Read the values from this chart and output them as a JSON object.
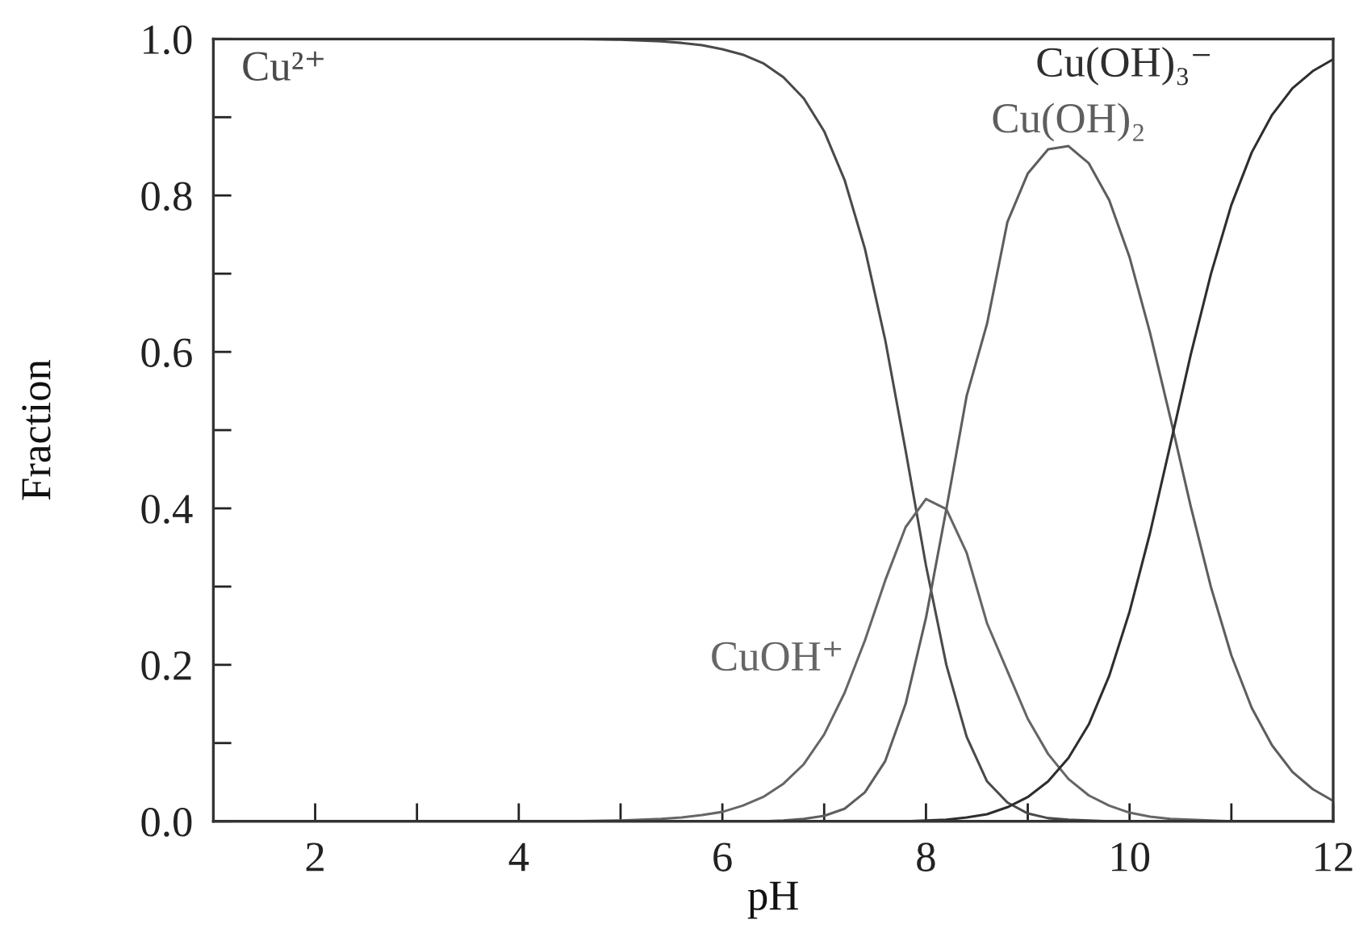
{
  "chart_data": {
    "type": "line",
    "xlabel": "pH",
    "ylabel": "Fraction",
    "x": [
      1,
      2,
      3,
      4,
      4.5,
      5,
      5.2,
      5.4,
      5.6,
      5.8,
      6,
      6.2,
      6.4,
      6.6,
      6.8,
      7,
      7.2,
      7.4,
      7.6,
      7.8,
      8,
      8.2,
      8.4,
      8.6,
      8.8,
      9,
      9.2,
      9.4,
      9.6,
      9.8,
      10,
      10.2,
      10.4,
      10.6,
      10.8,
      11,
      11.2,
      11.4,
      11.6,
      11.8,
      12
    ],
    "series": [
      {
        "name": "Cu²⁺",
        "color": "#4a4a4a",
        "values": [
          1,
          1,
          1,
          1,
          1,
          0.999,
          0.998,
          0.997,
          0.995,
          0.992,
          0.987,
          0.98,
          0.969,
          0.951,
          0.924,
          0.882,
          0.82,
          0.732,
          0.615,
          0.474,
          0.327,
          0.2,
          0.108,
          0.051,
          0.024,
          0.01,
          0.004,
          0.002,
          0.001,
          0,
          0,
          0,
          0,
          0,
          0,
          0,
          0,
          0,
          0,
          0,
          0
        ]
      },
      {
        "name": "CuOH⁺",
        "color": "#666666",
        "values": [
          0,
          0,
          0,
          0,
          0,
          0.001,
          0.002,
          0.003,
          0.005,
          0.008,
          0.012,
          0.02,
          0.031,
          0.048,
          0.073,
          0.111,
          0.164,
          0.231,
          0.308,
          0.376,
          0.412,
          0.399,
          0.343,
          0.253,
          0.192,
          0.131,
          0.086,
          0.054,
          0.033,
          0.02,
          0.011,
          0.006,
          0.003,
          0.002,
          0.001,
          0,
          0,
          0,
          0,
          0,
          0
        ]
      },
      {
        "name": "Cu(OH)₂",
        "color": "#5e5e5e",
        "values": [
          0,
          0,
          0,
          0,
          0,
          0,
          0,
          0,
          0,
          0,
          0,
          0,
          0,
          0.001,
          0.003,
          0.007,
          0.016,
          0.037,
          0.077,
          0.15,
          0.26,
          0.399,
          0.544,
          0.636,
          0.766,
          0.828,
          0.859,
          0.863,
          0.841,
          0.794,
          0.721,
          0.625,
          0.516,
          0.403,
          0.299,
          0.212,
          0.145,
          0.097,
          0.063,
          0.041,
          0.026
        ]
      },
      {
        "name": "Cu(OH)₃⁻",
        "color": "#2e2e2e",
        "values": [
          0,
          0,
          0,
          0,
          0,
          0,
          0,
          0,
          0,
          0,
          0,
          0,
          0,
          0,
          0,
          0,
          0,
          0,
          0,
          0,
          0.001,
          0.002,
          0.005,
          0.009,
          0.018,
          0.031,
          0.051,
          0.081,
          0.124,
          0.186,
          0.268,
          0.368,
          0.481,
          0.596,
          0.7,
          0.788,
          0.855,
          0.903,
          0.937,
          0.959,
          0.974
        ]
      }
    ],
    "xlim": [
      1,
      12
    ],
    "xticks": [
      2,
      {
        "value": 3,
        "label": null
      },
      4,
      {
        "value": 5,
        "label": null
      },
      6,
      {
        "value": 7,
        "label": null
      },
      8,
      {
        "value": 9,
        "label": null
      },
      10,
      {
        "value": 11,
        "label": null
      },
      12
    ],
    "ylim": [
      0,
      1
    ],
    "yticks": [
      {
        "value": 0,
        "label": "0.0"
      },
      {
        "value": 0.1,
        "label": null
      },
      0.2,
      {
        "value": 0.3,
        "label": null
      },
      0.4,
      {
        "value": 0.5,
        "label": null
      },
      0.6,
      {
        "value": 0.7,
        "label": null
      },
      0.8,
      {
        "value": 0.9,
        "label": null
      },
      {
        "value": 1,
        "label": "1.0"
      }
    ]
  }
}
